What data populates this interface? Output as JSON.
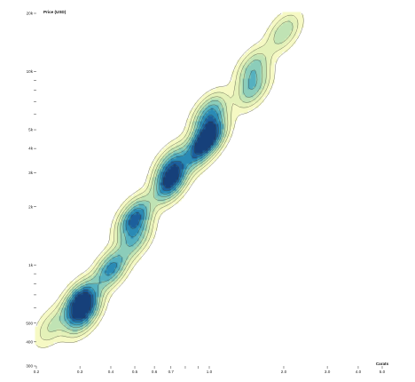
{
  "chart_data": {
    "type": "contour-density",
    "ylabel": "Price (USD)",
    "xlabel": "Carats",
    "x_scale": "log",
    "y_scale": "log",
    "xlim": [
      0.2,
      5.0
    ],
    "ylim": [
      300,
      20000
    ],
    "x_ticks": [
      {
        "value": 0.2,
        "label": "0.2"
      },
      {
        "value": 0.3,
        "label": "0.3"
      },
      {
        "value": 0.4,
        "label": "0.4"
      },
      {
        "value": 0.5,
        "label": "0.5"
      },
      {
        "value": 0.6,
        "label": "0.6"
      },
      {
        "value": 0.7,
        "label": "0.7"
      },
      {
        "value": 0.8,
        "label": ""
      },
      {
        "value": 0.9,
        "label": ""
      },
      {
        "value": 1.0,
        "label": "1.0"
      },
      {
        "value": 2.0,
        "label": "2.0"
      },
      {
        "value": 3.0,
        "label": "3.0"
      },
      {
        "value": 4.0,
        "label": "4.0"
      },
      {
        "value": 5.0,
        "label": "5.0"
      }
    ],
    "y_ticks": [
      {
        "value": 20000,
        "label": "20k"
      },
      {
        "value": 10000,
        "label": "10k"
      },
      {
        "value": 9000,
        "label": ""
      },
      {
        "value": 8000,
        "label": ""
      },
      {
        "value": 7000,
        "label": ""
      },
      {
        "value": 6000,
        "label": ""
      },
      {
        "value": 5000,
        "label": "5k"
      },
      {
        "value": 4000,
        "label": "4k"
      },
      {
        "value": 3000,
        "label": "3k"
      },
      {
        "value": 2000,
        "label": "2k"
      },
      {
        "value": 1000,
        "label": "1k"
      },
      {
        "value": 900,
        "label": ""
      },
      {
        "value": 800,
        "label": ""
      },
      {
        "value": 700,
        "label": ""
      },
      {
        "value": 600,
        "label": ""
      },
      {
        "value": 500,
        "label": "500"
      },
      {
        "value": 400,
        "label": "400"
      },
      {
        "value": 300,
        "label": "300"
      }
    ],
    "density_clusters": [
      {
        "carats": 0.3,
        "price": 650,
        "weight": 1.0
      },
      {
        "carats": 0.31,
        "price": 560,
        "weight": 0.8
      },
      {
        "carats": 0.4,
        "price": 950,
        "weight": 0.7
      },
      {
        "carats": 0.5,
        "price": 1750,
        "weight": 0.85
      },
      {
        "carats": 0.5,
        "price": 1350,
        "weight": 0.45
      },
      {
        "carats": 0.7,
        "price": 2700,
        "weight": 1.0
      },
      {
        "carats": 0.7,
        "price": 3300,
        "weight": 0.55
      },
      {
        "carats": 0.9,
        "price": 3900,
        "weight": 0.6
      },
      {
        "carats": 1.0,
        "price": 4600,
        "weight": 1.0
      },
      {
        "carats": 1.0,
        "price": 6000,
        "weight": 0.65
      },
      {
        "carats": 1.5,
        "price": 8200,
        "weight": 0.45
      },
      {
        "carats": 1.5,
        "price": 10500,
        "weight": 0.4
      },
      {
        "carats": 2.0,
        "price": 16000,
        "weight": 0.35
      },
      {
        "carats": 0.23,
        "price": 480,
        "weight": 0.25
      }
    ],
    "color_scale": [
      "#f6f9c4",
      "#e4f1b8",
      "#c0e3b4",
      "#8ccdba",
      "#54b0c0",
      "#2a8ab5",
      "#1b5e9c",
      "#123f7a"
    ],
    "grid": false,
    "legend": "none"
  }
}
